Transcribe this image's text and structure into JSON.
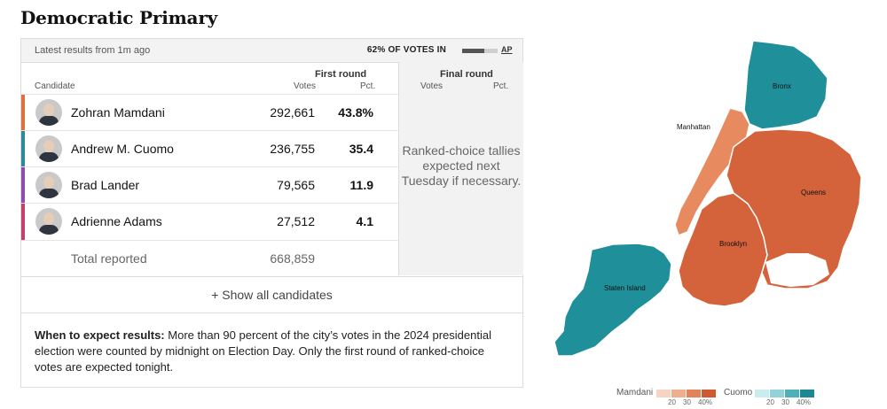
{
  "title": "Democratic Primary",
  "status": {
    "latest": "Latest results from 1m ago",
    "votes_in": "62% OF VOTES IN",
    "votes_in_fraction": 0.62,
    "source": "AP"
  },
  "headers": {
    "candidate": "Candidate",
    "first_round": "First round",
    "final_round": "Final round",
    "votes": "Votes",
    "pct": "Pct."
  },
  "candidates": [
    {
      "name": "Zohran Mamdani",
      "votes": "292,661",
      "pct": "43.8%",
      "color": "#e0703e"
    },
    {
      "name": "Andrew M. Cuomo",
      "votes": "236,755",
      "pct": "35.4",
      "color": "#2b8a98"
    },
    {
      "name": "Brad Lander",
      "votes": "79,565",
      "pct": "11.9",
      "color": "#8e4bb6"
    },
    {
      "name": "Adrienne Adams",
      "votes": "27,512",
      "pct": "4.1",
      "color": "#c73f6d"
    }
  ],
  "total": {
    "label": "Total reported",
    "votes": "668,859"
  },
  "final_round_note": "Ranked-choice tallies expected next Tuesday if necessary.",
  "show_all": "+ Show all candidates",
  "expect": {
    "heading": "When to expect results:",
    "text": "More than 90 percent of the city’s votes in the 2024 presidential election were counted by midnight on Election Day. Only the first round of ranked-choice votes are expected tonight."
  },
  "map": {
    "labels": {
      "bronx": "Bronx",
      "manhattan": "Manhattan",
      "queens": "Queens",
      "brooklyn": "Brooklyn",
      "staten_island": "Staten Island"
    },
    "colors": {
      "mamdani": "#d4623a",
      "mamdani_light": "#e88a60",
      "cuomo": "#1f8f99"
    }
  },
  "legend": {
    "mamdani": "Mamdani",
    "cuomo": "Cuomo",
    "ticks": [
      "20",
      "30",
      "40%"
    ],
    "mamdani_colors": [
      "#f6d3c2",
      "#efae8e",
      "#e3835a",
      "#cf5a2e"
    ],
    "cuomo_colors": [
      "#c9ecef",
      "#92d3da",
      "#4fb0ba",
      "#1c8893"
    ]
  }
}
